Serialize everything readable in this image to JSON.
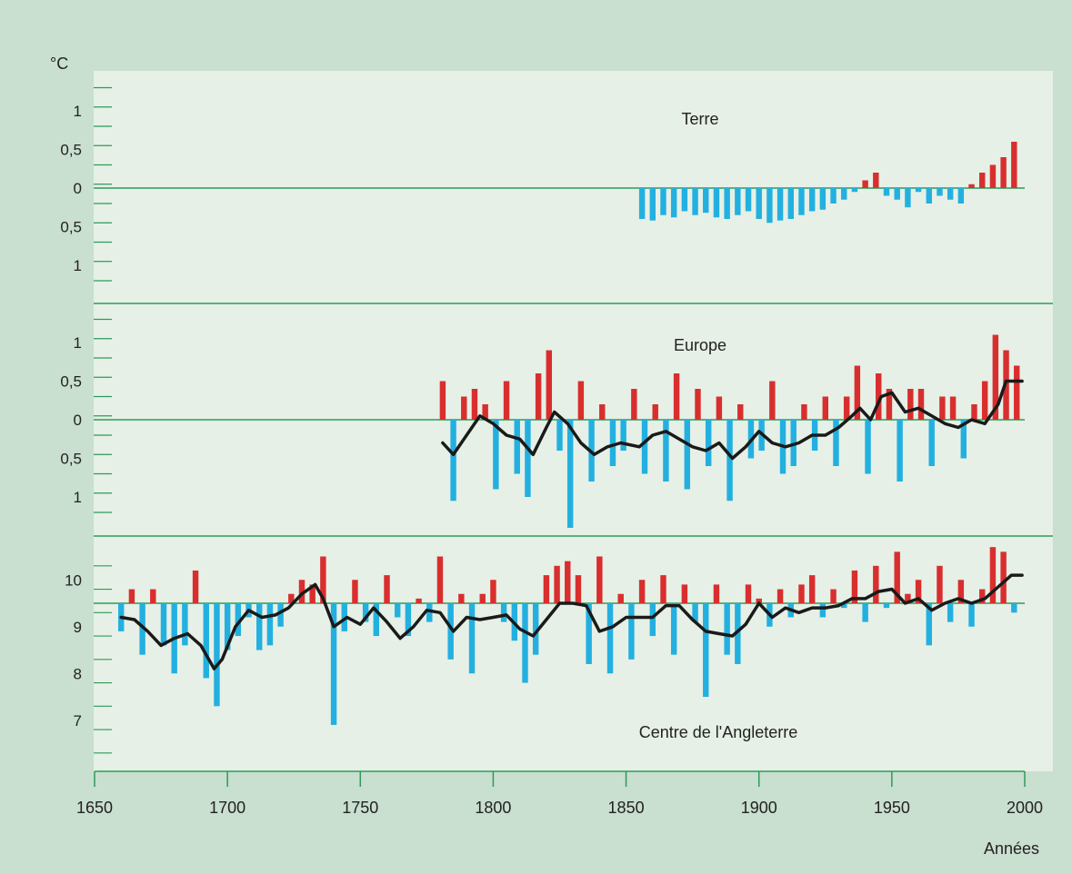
{
  "colors": {
    "background": "#c9dfcf",
    "plot_background": "#e6f0e6",
    "baseline": "#2e9a5a",
    "warm": "#d92e2e",
    "cool": "#23b0e0",
    "trend": "#1a1a1a",
    "text": "#222222"
  },
  "unit_label": "°C",
  "x_axis": {
    "label": "Années",
    "ticks": [
      "1650",
      "1700",
      "1750",
      "1800",
      "1850",
      "1900",
      "1950",
      "2000"
    ],
    "range": [
      1650,
      2000
    ]
  },
  "chart_data": [
    {
      "type": "bar",
      "title": "Terre",
      "baseline": 0,
      "ylim": [
        -1.45,
        1.45
      ],
      "tick_labels": [
        {
          "v": 1,
          "t": "1"
        },
        {
          "v": 0.5,
          "t": "0,5"
        },
        {
          "v": 0,
          "t": "0"
        },
        {
          "v": -0.5,
          "t": "0,5"
        },
        {
          "v": -1,
          "t": "1"
        }
      ],
      "x": [
        1856,
        1860,
        1864,
        1868,
        1872,
        1876,
        1880,
        1884,
        1888,
        1892,
        1896,
        1900,
        1904,
        1908,
        1912,
        1916,
        1920,
        1924,
        1928,
        1932,
        1936,
        1940,
        1944,
        1948,
        1952,
        1956,
        1960,
        1964,
        1968,
        1972,
        1976,
        1980,
        1984,
        1988,
        1992,
        1996
      ],
      "values": [
        -0.4,
        -0.42,
        -0.35,
        -0.38,
        -0.3,
        -0.35,
        -0.32,
        -0.38,
        -0.4,
        -0.35,
        -0.3,
        -0.4,
        -0.45,
        -0.42,
        -0.4,
        -0.35,
        -0.3,
        -0.28,
        -0.2,
        -0.15,
        -0.05,
        0.1,
        0.2,
        -0.1,
        -0.15,
        -0.25,
        -0.05,
        -0.2,
        -0.1,
        -0.15,
        -0.2,
        0.05,
        0.2,
        0.3,
        0.4,
        0.6
      ]
    },
    {
      "type": "bar",
      "title": "Europe",
      "baseline": 0,
      "ylim": [
        -1.45,
        1.45
      ],
      "tick_labels": [
        {
          "v": 1,
          "t": "1"
        },
        {
          "v": 0.5,
          "t": "0,5"
        },
        {
          "v": 0,
          "t": "0"
        },
        {
          "v": -0.5,
          "t": "0,5"
        },
        {
          "v": -1,
          "t": "1"
        }
      ],
      "x": [
        1781,
        1785,
        1789,
        1793,
        1797,
        1801,
        1805,
        1809,
        1813,
        1817,
        1821,
        1825,
        1829,
        1833,
        1837,
        1841,
        1845,
        1849,
        1853,
        1857,
        1861,
        1865,
        1869,
        1873,
        1877,
        1881,
        1885,
        1889,
        1893,
        1897,
        1901,
        1905,
        1909,
        1913,
        1917,
        1921,
        1925,
        1929,
        1933,
        1937,
        1941,
        1945,
        1949,
        1953,
        1957,
        1961,
        1965,
        1969,
        1973,
        1977,
        1981,
        1985,
        1989,
        1993,
        1997
      ],
      "values": [
        0.5,
        -1.05,
        0.3,
        0.4,
        0.2,
        -0.9,
        0.5,
        -0.7,
        -1.0,
        0.6,
        0.9,
        -0.4,
        -1.4,
        0.5,
        -0.8,
        0.2,
        -0.6,
        -0.4,
        0.4,
        -0.7,
        0.2,
        -0.8,
        0.6,
        -0.9,
        0.4,
        -0.6,
        0.3,
        -1.05,
        0.2,
        -0.5,
        -0.4,
        0.5,
        -0.7,
        -0.6,
        0.2,
        -0.4,
        0.3,
        -0.6,
        0.3,
        0.7,
        -0.7,
        0.6,
        0.4,
        -0.8,
        0.4,
        0.4,
        -0.6,
        0.3,
        0.3,
        -0.5,
        0.2,
        0.5,
        1.1,
        0.9,
        0.7
      ],
      "trend": [
        [
          1781,
          -0.3
        ],
        [
          1785,
          -0.45
        ],
        [
          1790,
          -0.2
        ],
        [
          1795,
          0.05
        ],
        [
          1800,
          -0.05
        ],
        [
          1805,
          -0.2
        ],
        [
          1810,
          -0.25
        ],
        [
          1815,
          -0.45
        ],
        [
          1820,
          -0.1
        ],
        [
          1823,
          0.1
        ],
        [
          1828,
          -0.05
        ],
        [
          1833,
          -0.3
        ],
        [
          1838,
          -0.45
        ],
        [
          1843,
          -0.35
        ],
        [
          1848,
          -0.3
        ],
        [
          1855,
          -0.35
        ],
        [
          1860,
          -0.2
        ],
        [
          1865,
          -0.15
        ],
        [
          1870,
          -0.25
        ],
        [
          1875,
          -0.35
        ],
        [
          1880,
          -0.4
        ],
        [
          1885,
          -0.3
        ],
        [
          1890,
          -0.5
        ],
        [
          1895,
          -0.35
        ],
        [
          1900,
          -0.15
        ],
        [
          1905,
          -0.3
        ],
        [
          1910,
          -0.35
        ],
        [
          1915,
          -0.3
        ],
        [
          1920,
          -0.2
        ],
        [
          1925,
          -0.2
        ],
        [
          1930,
          -0.1
        ],
        [
          1935,
          0.05
        ],
        [
          1938,
          0.15
        ],
        [
          1942,
          0.0
        ],
        [
          1946,
          0.3
        ],
        [
          1950,
          0.35
        ],
        [
          1955,
          0.1
        ],
        [
          1960,
          0.15
        ],
        [
          1965,
          0.05
        ],
        [
          1970,
          -0.05
        ],
        [
          1975,
          -0.1
        ],
        [
          1980,
          0.0
        ],
        [
          1985,
          -0.05
        ],
        [
          1990,
          0.2
        ],
        [
          1993,
          0.5
        ],
        [
          1999,
          0.5
        ]
      ]
    },
    {
      "type": "bar",
      "title": "Centre de l'Angleterre",
      "baseline": 9.5,
      "ylim": [
        6.3,
        11.3
      ],
      "tick_labels": [
        {
          "v": 10,
          "t": "10"
        },
        {
          "v": 9,
          "t": "9"
        },
        {
          "v": 8,
          "t": "8"
        },
        {
          "v": 7,
          "t": "7"
        }
      ],
      "x": [
        1660,
        1664,
        1668,
        1672,
        1676,
        1680,
        1684,
        1688,
        1692,
        1696,
        1700,
        1704,
        1708,
        1712,
        1716,
        1720,
        1724,
        1728,
        1732,
        1736,
        1740,
        1744,
        1748,
        1752,
        1756,
        1760,
        1764,
        1768,
        1772,
        1776,
        1780,
        1784,
        1788,
        1792,
        1796,
        1800,
        1804,
        1808,
        1812,
        1816,
        1820,
        1824,
        1828,
        1832,
        1836,
        1840,
        1844,
        1848,
        1852,
        1856,
        1860,
        1864,
        1868,
        1872,
        1876,
        1880,
        1884,
        1888,
        1892,
        1896,
        1900,
        1904,
        1908,
        1912,
        1916,
        1920,
        1924,
        1928,
        1932,
        1936,
        1940,
        1944,
        1948,
        1952,
        1956,
        1960,
        1964,
        1968,
        1972,
        1976,
        1980,
        1984,
        1988,
        1992,
        1996
      ],
      "values": [
        8.9,
        9.8,
        8.4,
        9.8,
        8.6,
        8.0,
        8.6,
        10.2,
        7.9,
        7.3,
        8.5,
        8.8,
        9.2,
        8.5,
        8.6,
        9.0,
        9.7,
        10.0,
        9.9,
        10.5,
        6.9,
        8.9,
        10.0,
        9.1,
        8.8,
        10.1,
        9.2,
        8.8,
        9.6,
        9.1,
        10.5,
        8.3,
        9.7,
        8.0,
        9.7,
        10.0,
        9.1,
        8.7,
        7.8,
        8.4,
        10.1,
        10.3,
        10.4,
        10.1,
        8.2,
        10.5,
        8.0,
        9.7,
        8.3,
        10.0,
        8.8,
        10.1,
        8.4,
        9.9,
        9.1,
        7.5,
        9.9,
        8.4,
        8.2,
        9.9,
        9.6,
        9.0,
        9.8,
        9.2,
        9.9,
        10.1,
        9.2,
        9.8,
        9.4,
        10.2,
        9.1,
        10.3,
        9.4,
        10.6,
        9.7,
        10.0,
        8.6,
        10.3,
        9.1,
        10.0,
        9.0,
        9.8,
        10.7,
        10.6,
        9.3
      ],
      "trend": [
        [
          1660,
          9.2
        ],
        [
          1665,
          9.15
        ],
        [
          1670,
          8.9
        ],
        [
          1675,
          8.6
        ],
        [
          1680,
          8.75
        ],
        [
          1685,
          8.85
        ],
        [
          1690,
          8.6
        ],
        [
          1695,
          8.1
        ],
        [
          1698,
          8.3
        ],
        [
          1703,
          9.0
        ],
        [
          1708,
          9.35
        ],
        [
          1713,
          9.2
        ],
        [
          1718,
          9.25
        ],
        [
          1723,
          9.4
        ],
        [
          1728,
          9.7
        ],
        [
          1733,
          9.9
        ],
        [
          1736,
          9.6
        ],
        [
          1740,
          9.0
        ],
        [
          1745,
          9.2
        ],
        [
          1750,
          9.05
        ],
        [
          1755,
          9.4
        ],
        [
          1760,
          9.1
        ],
        [
          1765,
          8.75
        ],
        [
          1770,
          9.0
        ],
        [
          1775,
          9.35
        ],
        [
          1780,
          9.3
        ],
        [
          1785,
          8.9
        ],
        [
          1790,
          9.2
        ],
        [
          1795,
          9.15
        ],
        [
          1800,
          9.2
        ],
        [
          1805,
          9.25
        ],
        [
          1810,
          8.95
        ],
        [
          1815,
          8.8
        ],
        [
          1820,
          9.15
        ],
        [
          1825,
          9.5
        ],
        [
          1830,
          9.5
        ],
        [
          1835,
          9.45
        ],
        [
          1840,
          8.9
        ],
        [
          1845,
          9.0
        ],
        [
          1850,
          9.2
        ],
        [
          1855,
          9.2
        ],
        [
          1860,
          9.2
        ],
        [
          1865,
          9.45
        ],
        [
          1870,
          9.45
        ],
        [
          1875,
          9.15
        ],
        [
          1880,
          8.9
        ],
        [
          1885,
          8.85
        ],
        [
          1890,
          8.8
        ],
        [
          1895,
          9.05
        ],
        [
          1900,
          9.5
        ],
        [
          1905,
          9.2
        ],
        [
          1910,
          9.4
        ],
        [
          1915,
          9.3
        ],
        [
          1920,
          9.4
        ],
        [
          1925,
          9.4
        ],
        [
          1930,
          9.45
        ],
        [
          1935,
          9.6
        ],
        [
          1940,
          9.6
        ],
        [
          1945,
          9.75
        ],
        [
          1950,
          9.8
        ],
        [
          1955,
          9.5
        ],
        [
          1960,
          9.6
        ],
        [
          1965,
          9.35
        ],
        [
          1970,
          9.5
        ],
        [
          1975,
          9.6
        ],
        [
          1980,
          9.5
        ],
        [
          1985,
          9.6
        ],
        [
          1990,
          9.85
        ],
        [
          1995,
          10.1
        ],
        [
          1999,
          10.1
        ]
      ]
    }
  ]
}
